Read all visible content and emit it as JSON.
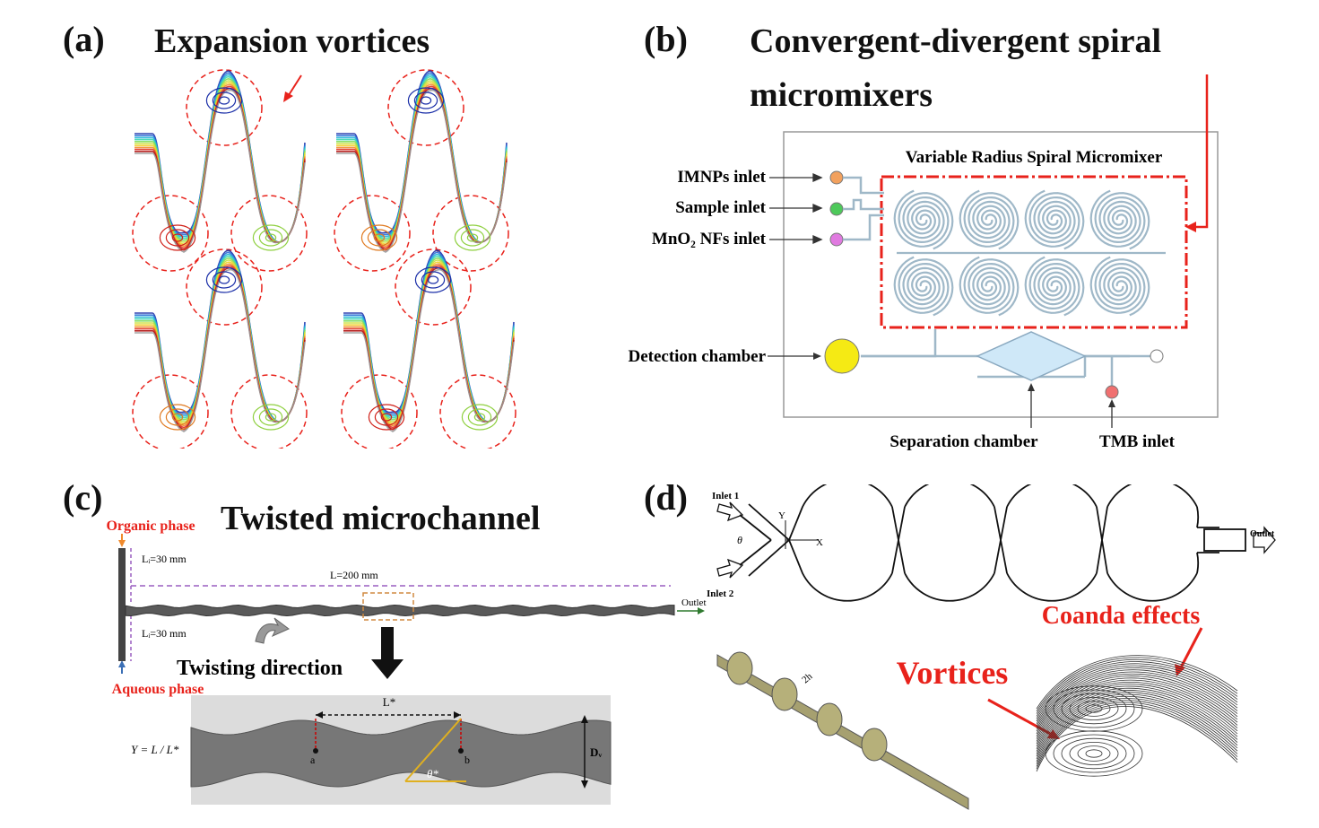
{
  "panel_a": {
    "label": "(a)",
    "title": "Expansion vortices"
  },
  "panel_b": {
    "label": "(b)",
    "title_line1": "Convergent-divergent spiral",
    "title_line2": "micromixers",
    "box_title": "Variable Radius Spiral Micromixer",
    "inlets": [
      "IMNPs inlet",
      "Sample inlet",
      "MnO₂ NFs inlet"
    ],
    "detection": "Detection chamber",
    "separation": "Separation chamber",
    "tmb": "TMB inlet"
  },
  "panel_c": {
    "label": "(c)",
    "title": "Twisted microchannel",
    "organic": "Organic phase",
    "aqueous": "Aqueous phase",
    "li_top": "Lᵢ=30 mm",
    "li_bottom": "Lᵢ=30 mm",
    "length": "L=200 mm",
    "outlet": "Outlet",
    "twist": "Twisting direction",
    "lstar": "L*",
    "formula": "Y = L / L*",
    "dw": "Dᵥ",
    "theta": "θ*",
    "a": "a",
    "b": "b"
  },
  "panel_d": {
    "label": "(d)",
    "inlet1": "Inlet 1",
    "inlet2": "Inlet 2",
    "outlet": "Outlet",
    "y": "Y",
    "x": "X",
    "theta": "θ",
    "coanda": "Coanda effects",
    "vortices": "Vortices",
    "two_h": "2h"
  },
  "colors": {
    "red": "#e8221b",
    "spiral_line": "#9fb8c8",
    "diamond": "#cfe8f8",
    "detection_fill": "#f5ea14",
    "olive": "#b6b07a"
  }
}
